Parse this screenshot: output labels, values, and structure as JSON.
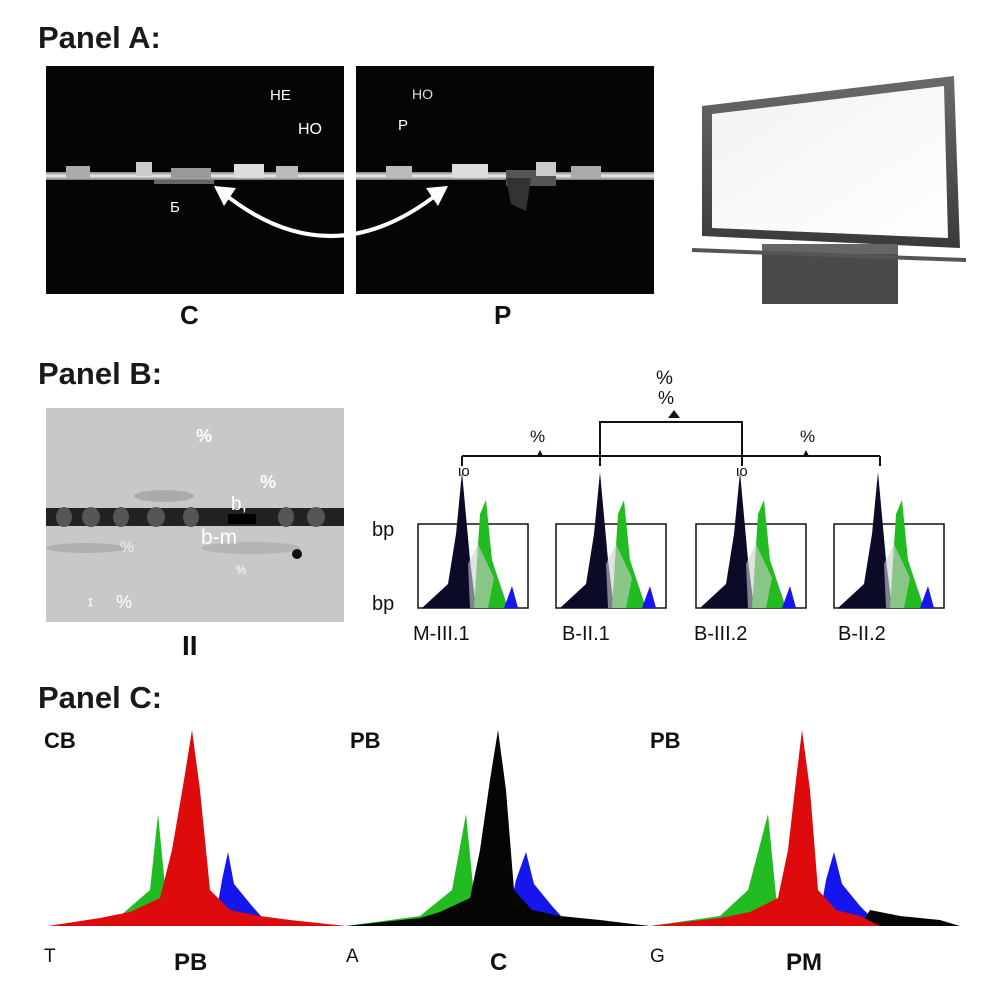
{
  "panel_a": {
    "title": "Panel A:",
    "image_c": {
      "labels": [
        "HE",
        "HO",
        "Б"
      ],
      "caption": "C"
    },
    "image_p": {
      "labels": [
        "HO",
        "P"
      ],
      "caption": "P"
    },
    "monitor_icon": "monitor-icon"
  },
  "panel_b": {
    "title": "Panel B:",
    "gel": {
      "labels": [
        "%",
        "%",
        "b,",
        "b-m",
        "%",
        "%",
        "ɪ",
        "%"
      ],
      "caption": "II"
    },
    "pedigree": {
      "top_label_1": "%",
      "top_label_2": "%",
      "left_branch_label": "%",
      "right_branch_label": "%",
      "axis_top": "bp",
      "axis_bottom": "bp",
      "samples": [
        {
          "name": "M-III.1",
          "marker": "ιo"
        },
        {
          "name": "B-II.1",
          "marker": ""
        },
        {
          "name": "B-III.2",
          "marker": "ιo"
        },
        {
          "name": "B-II.2",
          "marker": ""
        }
      ]
    }
  },
  "panel_c": {
    "title": "Panel C:",
    "traces": [
      {
        "top_label": "CB",
        "left_label": "T",
        "bottom_label": "PB",
        "main_color": "#dd0b0b"
      },
      {
        "top_label": "PB",
        "left_label": "A",
        "bottom_label": "C",
        "main_color": "#050505"
      },
      {
        "top_label": "PB",
        "left_label": "G",
        "bottom_label": "PM",
        "main_color": "#dd0b0b"
      }
    ],
    "colors": {
      "red": "#dd0b0b",
      "green": "#22bb22",
      "blue": "#1515ee",
      "black": "#050505"
    }
  }
}
